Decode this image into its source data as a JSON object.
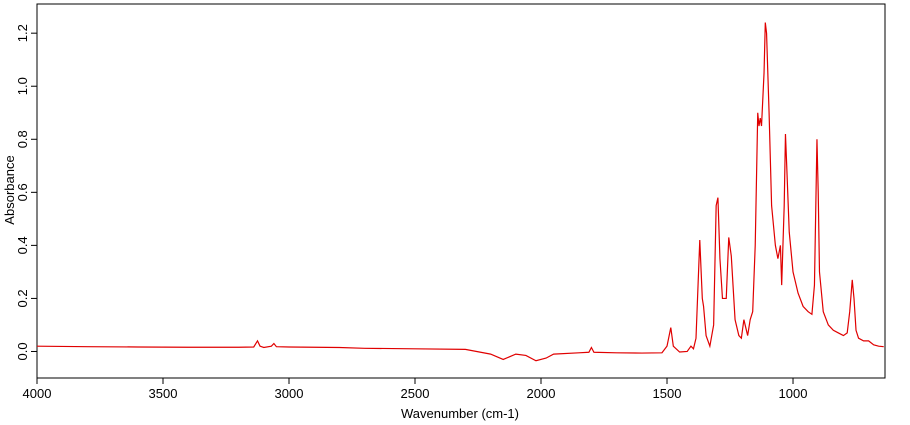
{
  "chart_data": {
    "type": "line",
    "x_label": "Wavenumber (cm-1)",
    "y_label": "Absorbance",
    "xlim": [
      4000,
      635
    ],
    "ylim": [
      -0.1,
      1.31
    ],
    "xticks": [
      4000,
      3500,
      3000,
      2500,
      2000,
      1500,
      1000
    ],
    "yticks": [
      {
        "value": 0,
        "label": "0.0"
      },
      0.2,
      0.4,
      0.6,
      0.8,
      {
        "value": 1,
        "label": "1.0"
      },
      1.2
    ],
    "x": [
      4000,
      3800,
      3600,
      3400,
      3200,
      3140,
      3125,
      3115,
      3100,
      3070,
      3060,
      3050,
      3000,
      2800,
      2700,
      2500,
      2300,
      2200,
      2150,
      2100,
      2060,
      2020,
      1980,
      1950,
      1850,
      1810,
      1800,
      1790,
      1700,
      1600,
      1520,
      1500,
      1485,
      1475,
      1450,
      1420,
      1405,
      1395,
      1385,
      1370,
      1360,
      1355,
      1345,
      1330,
      1315,
      1305,
      1298,
      1290,
      1280,
      1265,
      1255,
      1245,
      1230,
      1215,
      1205,
      1195,
      1190,
      1180,
      1170,
      1160,
      1150,
      1140,
      1135,
      1130,
      1125,
      1115,
      1110,
      1105,
      1095,
      1085,
      1070,
      1060,
      1050,
      1045,
      1040,
      1035,
      1030,
      1025,
      1015,
      1000,
      980,
      960,
      940,
      925,
      915,
      905,
      900,
      895,
      880,
      860,
      840,
      820,
      800,
      785,
      775,
      765,
      758,
      750,
      740,
      720,
      700,
      680,
      660,
      640
    ],
    "series": [
      {
        "name": "Absorbance",
        "color": "#e00000",
        "values": [
          0.02,
          0.018,
          0.017,
          0.016,
          0.016,
          0.017,
          0.04,
          0.02,
          0.015,
          0.02,
          0.03,
          0.018,
          0.017,
          0.015,
          0.012,
          0.01,
          0.008,
          -0.01,
          -0.03,
          -0.01,
          -0.015,
          -0.035,
          -0.025,
          -0.01,
          -0.005,
          -0.003,
          0.015,
          -0.003,
          -0.005,
          -0.006,
          -0.005,
          0.02,
          0.09,
          0.02,
          -0.002,
          0.0,
          0.02,
          0.01,
          0.05,
          0.42,
          0.2,
          0.17,
          0.06,
          0.02,
          0.1,
          0.55,
          0.58,
          0.35,
          0.2,
          0.2,
          0.43,
          0.36,
          0.12,
          0.06,
          0.05,
          0.12,
          0.1,
          0.06,
          0.12,
          0.15,
          0.4,
          0.9,
          0.85,
          0.88,
          0.85,
          1.05,
          1.24,
          1.2,
          0.9,
          0.55,
          0.4,
          0.35,
          0.4,
          0.25,
          0.4,
          0.55,
          0.82,
          0.7,
          0.45,
          0.3,
          0.22,
          0.17,
          0.15,
          0.14,
          0.25,
          0.8,
          0.6,
          0.3,
          0.15,
          0.1,
          0.08,
          0.07,
          0.06,
          0.07,
          0.15,
          0.27,
          0.2,
          0.08,
          0.05,
          0.04,
          0.04,
          0.025,
          0.02,
          0.018
        ]
      }
    ]
  }
}
